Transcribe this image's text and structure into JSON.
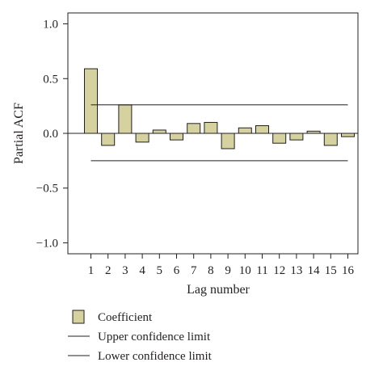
{
  "chart_data": {
    "type": "bar",
    "title": "",
    "xlabel": "Lag number",
    "ylabel": "Partial ACF",
    "categories": [
      "1",
      "2",
      "3",
      "4",
      "5",
      "6",
      "7",
      "8",
      "9",
      "10",
      "11",
      "12",
      "13",
      "14",
      "15",
      "16"
    ],
    "series": [
      {
        "name": "Coefficient",
        "values": [
          0.59,
          -0.11,
          0.26,
          -0.08,
          0.03,
          -0.06,
          0.09,
          0.1,
          -0.14,
          0.05,
          0.07,
          -0.09,
          -0.06,
          0.02,
          -0.11,
          -0.03
        ]
      }
    ],
    "upper_confidence_limit": 0.26,
    "lower_confidence_limit": -0.25,
    "ylim": [
      -1.1,
      1.1
    ],
    "yticks": [
      "1.0",
      "0.5",
      "0.0",
      "−0.5",
      "−1.0"
    ],
    "ytick_values": [
      1.0,
      0.5,
      0.0,
      -0.5,
      -1.0
    ],
    "grid": false,
    "legend_position": "bottom-left",
    "legend": [
      "Coefficient",
      "Upper confidence limit",
      "Lower confidence limit"
    ],
    "colors": {
      "bar_fill": "#d6d2a0",
      "bar_stroke": "#231f20",
      "line": "#231f20",
      "axis": "#231f20"
    }
  }
}
